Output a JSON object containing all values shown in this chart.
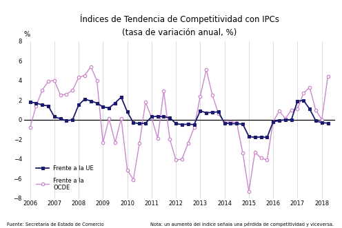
{
  "title": "Índices de Tendencia de Competitividad con IPCs",
  "subtitle": "(tasa de variación anual, %)",
  "ylabel_text": "%",
  "note_left": "Fuente: Secretaría de Estado de Comercio",
  "note_right": "Nota: un aumento del índice señala una pérdida de competitividad y viceversa.",
  "ylim": [
    -8,
    8
  ],
  "xlim": [
    2005.75,
    2018.55
  ],
  "background_color": "#ffffff",
  "grid_color": "#cccccc",
  "ue_label": "Frente a la UE",
  "ocde_label": "Frente a la\nOCDE",
  "ue_color": "#1a1a6e",
  "ocde_color": "#cc88cc",
  "x_ue": [
    2006.0,
    2006.25,
    2006.5,
    2006.75,
    2007.0,
    2007.25,
    2007.5,
    2007.75,
    2008.0,
    2008.25,
    2008.5,
    2008.75,
    2009.0,
    2009.25,
    2009.5,
    2009.75,
    2010.0,
    2010.25,
    2010.5,
    2010.75,
    2011.0,
    2011.25,
    2011.5,
    2011.75,
    2012.0,
    2012.25,
    2012.5,
    2012.75,
    2013.0,
    2013.25,
    2013.5,
    2013.75,
    2014.0,
    2014.25,
    2014.5,
    2014.75,
    2015.0,
    2015.25,
    2015.5,
    2015.75,
    2016.0,
    2016.25,
    2016.5,
    2016.75,
    2017.0,
    2017.25,
    2017.5,
    2017.75,
    2018.0,
    2018.25
  ],
  "y_ue": [
    1.8,
    1.7,
    1.5,
    1.4,
    0.3,
    0.1,
    -0.1,
    0.0,
    1.5,
    2.1,
    1.9,
    1.7,
    1.3,
    1.2,
    1.7,
    2.3,
    0.8,
    -0.3,
    -0.4,
    -0.35,
    0.3,
    0.35,
    0.3,
    0.2,
    -0.4,
    -0.5,
    -0.45,
    -0.5,
    0.9,
    0.7,
    0.75,
    0.8,
    -0.35,
    -0.4,
    -0.4,
    -0.45,
    -1.7,
    -1.8,
    -1.75,
    -1.8,
    -0.2,
    -0.1,
    0.0,
    0.0,
    1.9,
    1.95,
    1.1,
    -0.1,
    -0.3,
    -0.35
  ],
  "x_ocde": [
    2006.0,
    2006.25,
    2006.5,
    2006.75,
    2007.0,
    2007.25,
    2007.5,
    2007.75,
    2008.0,
    2008.25,
    2008.5,
    2008.75,
    2009.0,
    2009.25,
    2009.5,
    2009.75,
    2010.0,
    2010.25,
    2010.5,
    2010.75,
    2011.0,
    2011.25,
    2011.5,
    2011.75,
    2012.0,
    2012.25,
    2012.5,
    2012.75,
    2013.0,
    2013.25,
    2013.5,
    2013.75,
    2014.0,
    2014.25,
    2014.5,
    2014.75,
    2015.0,
    2015.25,
    2015.5,
    2015.75,
    2016.0,
    2016.25,
    2016.5,
    2016.75,
    2017.0,
    2017.25,
    2017.5,
    2017.75,
    2018.0,
    2018.25
  ],
  "y_ocde": [
    -0.8,
    1.4,
    3.0,
    3.9,
    4.0,
    2.5,
    2.6,
    3.0,
    4.3,
    4.5,
    5.4,
    4.0,
    -2.3,
    0.1,
    -2.3,
    0.1,
    -5.1,
    -6.1,
    -2.4,
    1.8,
    0.2,
    -1.9,
    2.9,
    -2.0,
    -4.1,
    -4.0,
    -2.4,
    -0.8,
    2.4,
    5.1,
    2.5,
    0.6,
    -0.3,
    -0.2,
    -0.3,
    -3.4,
    -7.3,
    -3.3,
    -3.9,
    -4.1,
    -0.2,
    0.9,
    0.1,
    1.0,
    1.1,
    2.7,
    3.3,
    1.0,
    0.0,
    4.4
  ],
  "yticks": [
    -8,
    -6,
    -4,
    -2,
    0,
    2,
    4,
    6,
    8
  ],
  "xticks": [
    2006,
    2007,
    2008,
    2009,
    2010,
    2011,
    2012,
    2013,
    2014,
    2015,
    2016,
    2017,
    2018
  ]
}
